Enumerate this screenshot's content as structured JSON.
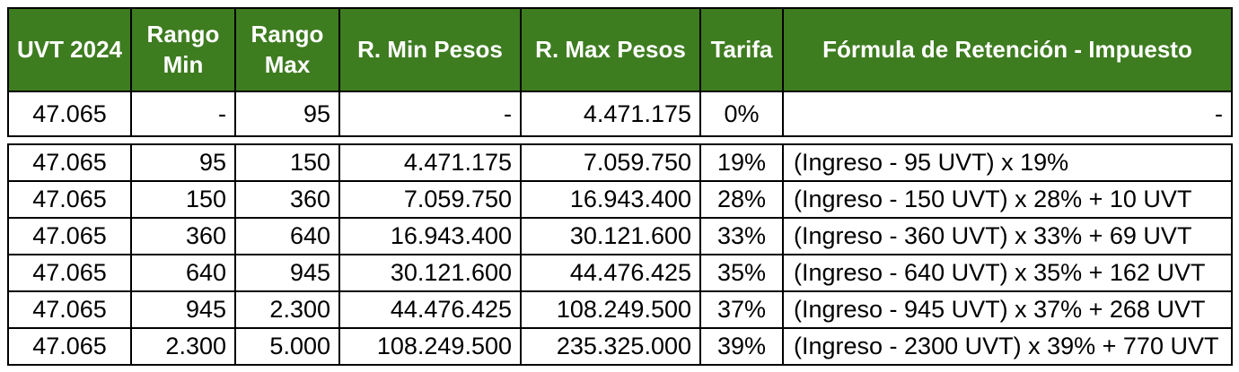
{
  "colors": {
    "header_bg": "#3E7C20",
    "header_text": "#FFFFFF",
    "body_text": "#000000",
    "border": "#000000",
    "page_bg": "#FFFFFF"
  },
  "chart_data": {
    "type": "table",
    "columns": [
      "UVT 2024",
      "Rango Min",
      "Rango Max",
      "R. Min Pesos",
      "R. Max Pesos",
      "Tarifa",
      "Fórmula de Retención - Impuesto"
    ],
    "rows": [
      [
        "47.065",
        "-",
        "95",
        "-",
        "4.471.175",
        "0%",
        "-"
      ],
      [
        "47.065",
        "95",
        "150",
        "4.471.175",
        "7.059.750",
        "19%",
        "(Ingreso - 95 UVT) x 19%"
      ],
      [
        "47.065",
        "150",
        "360",
        "7.059.750",
        "16.943.400",
        "28%",
        "(Ingreso - 150 UVT) x 28% + 10 UVT"
      ],
      [
        "47.065",
        "360",
        "640",
        "16.943.400",
        "30.121.600",
        "33%",
        "(Ingreso - 360 UVT) x 33% + 69 UVT"
      ],
      [
        "47.065",
        "640",
        "945",
        "30.121.600",
        "44.476.425",
        "35%",
        "(Ingreso - 640 UVT) x 35% + 162 UVT"
      ],
      [
        "47.065",
        "945",
        "2.300",
        "44.476.425",
        "108.249.500",
        "37%",
        "(Ingreso - 945 UVT) x 37% + 268 UVT"
      ],
      [
        "47.065",
        "2.300",
        "5.000",
        "108.249.500",
        "235.325.000",
        "39%",
        "(Ingreso - 2300 UVT) x 39% + 770 UVT"
      ]
    ]
  }
}
